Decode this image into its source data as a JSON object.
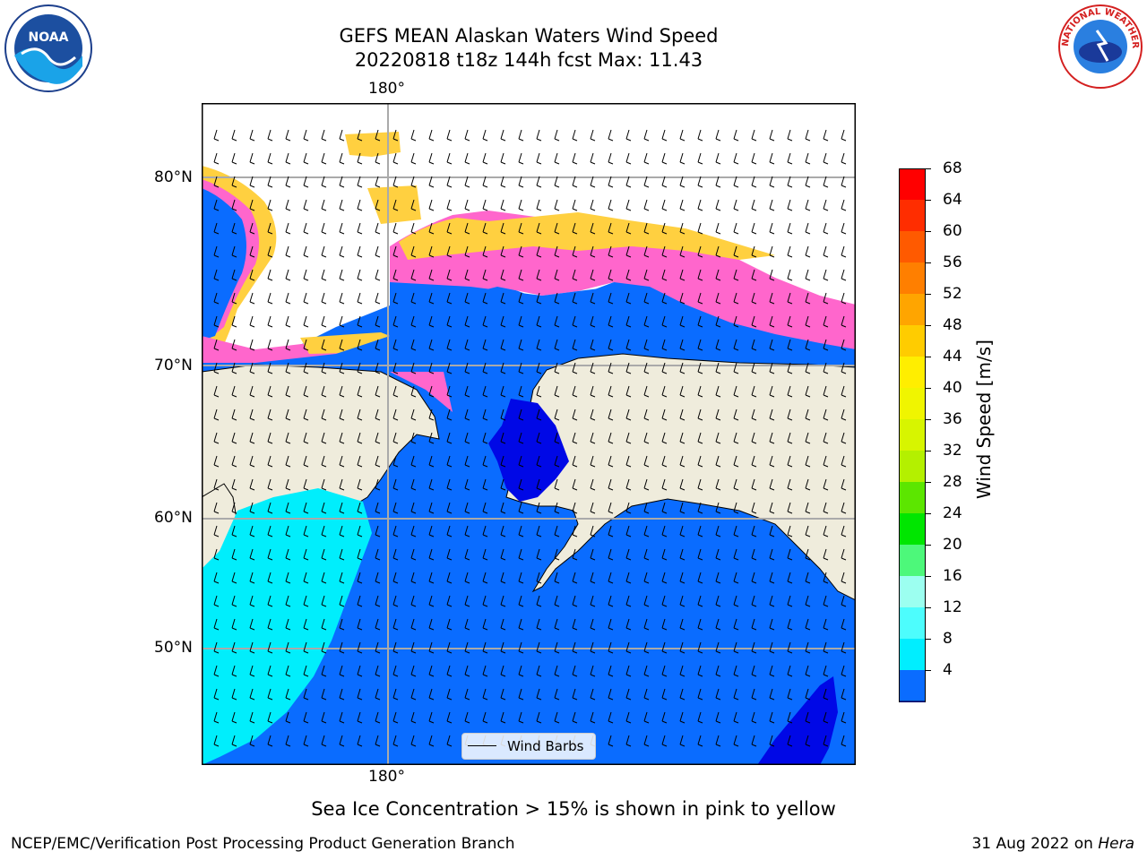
{
  "header": {
    "title_line1": "GEFS MEAN Alaskan Waters Wind Speed",
    "title_line2": "20220818 t18z 144h fcst   Max: 11.43"
  },
  "logos": {
    "noaa_text": "NOAA",
    "nws_text": "NATIONAL WEATHER SERVICE"
  },
  "map": {
    "lon_label_top": "180°",
    "lon_label_bottom": "180°",
    "lat_labels": [
      "80°N",
      "70°N",
      "60°N",
      "50°N"
    ],
    "legend_label": "Wind Barbs",
    "colors": {
      "land": "#efecdc",
      "ocean_low": "#0a6cff",
      "ocean_deep": "#0008e6",
      "ocean_mid": "#00eefc",
      "ice_pink": "#ff66cc",
      "ice_yellow": "#ffd040"
    }
  },
  "colorbar": {
    "label": "Wind Speed [m/s]",
    "ticks": [
      "68",
      "64",
      "60",
      "56",
      "52",
      "48",
      "44",
      "40",
      "36",
      "32",
      "28",
      "24",
      "20",
      "16",
      "12",
      "8",
      "4"
    ],
    "colors": [
      "#ff0000",
      "#ff2d00",
      "#ff5a00",
      "#ff7f00",
      "#ffa500",
      "#ffcc00",
      "#ffee00",
      "#f0f500",
      "#d7f500",
      "#b4f000",
      "#5ce600",
      "#00e600",
      "#4df87a",
      "#9cfff0",
      "#4dfdfd",
      "#00eeff",
      "#0a6cff"
    ],
    "extend_color": "#0008e6"
  },
  "caption": "Sea Ice Concentration > 15% is shown in pink to yellow",
  "footer": {
    "left": "NCEP/EMC/Verification Post Processing Product Generation Branch",
    "right_date": "31 Aug 2022 on ",
    "right_host": "Hera"
  }
}
